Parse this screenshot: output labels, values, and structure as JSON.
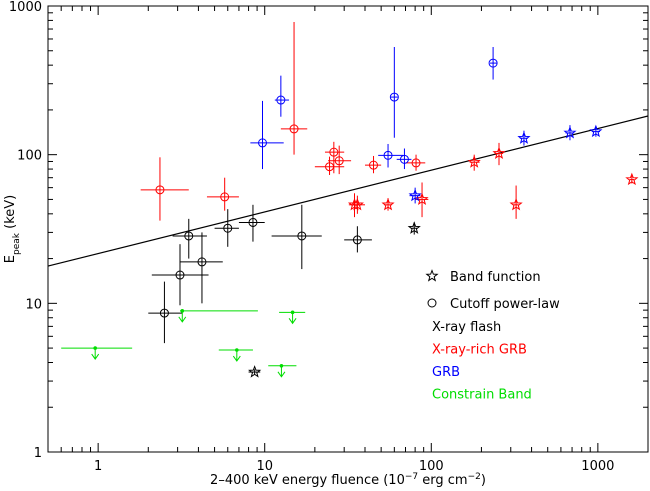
{
  "chart_data": {
    "type": "scatter",
    "x_label": [
      {
        "text": "2–400 keV energy fluence (10"
      },
      {
        "text": "−7",
        "sup": true
      },
      {
        "text": " erg cm"
      },
      {
        "text": "−2",
        "sup": true
      },
      {
        "text": ")"
      }
    ],
    "y_label": [
      {
        "text": "E"
      },
      {
        "text": "peak",
        "sub": true
      },
      {
        "text": " (keV)"
      }
    ],
    "xlog": true,
    "ylog": true,
    "xlim": [
      0.5,
      2000
    ],
    "ylim": [
      1,
      1000
    ],
    "xticks": [
      1,
      10,
      100,
      1000
    ],
    "yticks": [
      1,
      10,
      100,
      1000
    ],
    "xminorticks": [
      0.6,
      0.7,
      0.8,
      0.9,
      2,
      3,
      4,
      5,
      6,
      7,
      8,
      9,
      20,
      30,
      40,
      50,
      60,
      70,
      80,
      90,
      200,
      300,
      400,
      500,
      600,
      700,
      800,
      900
    ],
    "yminorticks": [
      2,
      3,
      4,
      5,
      6,
      7,
      8,
      9,
      20,
      30,
      40,
      50,
      60,
      70,
      80,
      90,
      200,
      300,
      400,
      500,
      600,
      700,
      800,
      900
    ],
    "fit_line": {
      "color": "#000000",
      "x": [
        0.5,
        2000
      ],
      "y": [
        17.8,
        182
      ]
    },
    "marker_legend": [
      {
        "symbol": "star",
        "label": "Band function"
      },
      {
        "symbol": "circle",
        "label": "Cutoff power-law"
      }
    ],
    "series": [
      {
        "name": "X-ray flash",
        "color": "#000000",
        "x": [
          2.5,
          3.1,
          3.5,
          4.2,
          6.0,
          8.5,
          16.7,
          36,
          8.7,
          79
        ],
        "values": [
          8.6,
          15.5,
          28.4,
          19,
          32,
          35,
          28.4,
          26.7,
          3.45,
          32
        ],
        "x_low": [
          2.0,
          2.1,
          2.8,
          3.1,
          5.0,
          7.0,
          11,
          30,
          8.0,
          76
        ],
        "x_high": [
          3.2,
          4.6,
          4.5,
          5.6,
          7.0,
          10,
          22,
          44,
          9.4,
          82
        ],
        "y_low": [
          5.4,
          9.7,
          20,
          10,
          24,
          26,
          17,
          22,
          3.3,
          29
        ],
        "y_high": [
          14,
          25,
          37,
          30,
          43,
          46,
          46,
          33,
          3.6,
          35
        ],
        "marker": [
          "circle",
          "circle",
          "circle",
          "circle",
          "circle",
          "circle",
          "circle",
          "circle",
          "star",
          "star"
        ]
      },
      {
        "name": "X-ray-rich GRB",
        "color": "#ff0000",
        "x": [
          2.35,
          5.75,
          15,
          24.5,
          26,
          28,
          81,
          45,
          34.6,
          36,
          55,
          88,
          181,
          255,
          323,
          1600
        ],
        "values": [
          58,
          52,
          149,
          83,
          104,
          91,
          88,
          85,
          46,
          46,
          46,
          50,
          89,
          102,
          46,
          68
        ],
        "x_low": [
          1.8,
          4.5,
          12.5,
          20,
          23,
          24,
          70,
          40,
          32,
          33,
          52,
          80,
          170,
          240,
          310,
          1550
        ],
        "x_high": [
          3.5,
          7.0,
          18,
          30,
          30,
          33,
          92,
          50,
          38,
          40,
          58,
          96,
          195,
          270,
          335,
          1650
        ],
        "y_low": [
          36,
          42,
          100,
          73,
          75,
          74,
          78,
          75,
          38,
          40,
          42,
          38,
          78,
          85,
          37,
          64
        ],
        "y_high": [
          96,
          70,
          780,
          97,
          122,
          115,
          100,
          98,
          55,
          53,
          51,
          65,
          100,
          120,
          62,
          72
        ],
        "marker": [
          "circle",
          "circle",
          "circle",
          "circle",
          "circle",
          "circle",
          "circle",
          "circle",
          "star",
          "star",
          "star",
          "star",
          "star",
          "star",
          "star",
          "star"
        ]
      },
      {
        "name": "GRB",
        "color": "#0000ff",
        "x": [
          9.7,
          12.5,
          60,
          55,
          69,
          235,
          80,
          360,
          680,
          973
        ],
        "values": [
          120,
          233,
          244,
          99,
          93,
          413,
          53,
          129,
          140,
          143
        ],
        "x_low": [
          8.2,
          11.5,
          57,
          48,
          62,
          225,
          74,
          340,
          640,
          920
        ],
        "x_high": [
          13,
          14,
          63,
          68,
          76,
          248,
          86,
          380,
          720,
          1030
        ],
        "y_low": [
          80,
          180,
          130,
          82,
          80,
          320,
          47,
          115,
          125,
          132
        ],
        "y_high": [
          230,
          340,
          530,
          118,
          110,
          530,
          60,
          145,
          158,
          155
        ],
        "marker": [
          "circle",
          "circle",
          "circle",
          "circle",
          "circle",
          "circle",
          "star",
          "star",
          "star",
          "star"
        ]
      },
      {
        "name": "Constrain Band",
        "color": "#00dd00",
        "upper_limit": true,
        "x": [
          0.96,
          3.2,
          6.8,
          14.7,
          12.6
        ],
        "values": [
          5.0,
          8.9,
          4.85,
          8.7,
          3.8
        ],
        "x_low": [
          0.6,
          3.1,
          5.3,
          12.2,
          10.5
        ],
        "x_high": [
          1.6,
          9.1,
          8.5,
          17.5,
          15.5
        ],
        "marker": [
          "dot",
          "dot",
          "dot",
          "dot",
          "dot"
        ]
      }
    ]
  }
}
